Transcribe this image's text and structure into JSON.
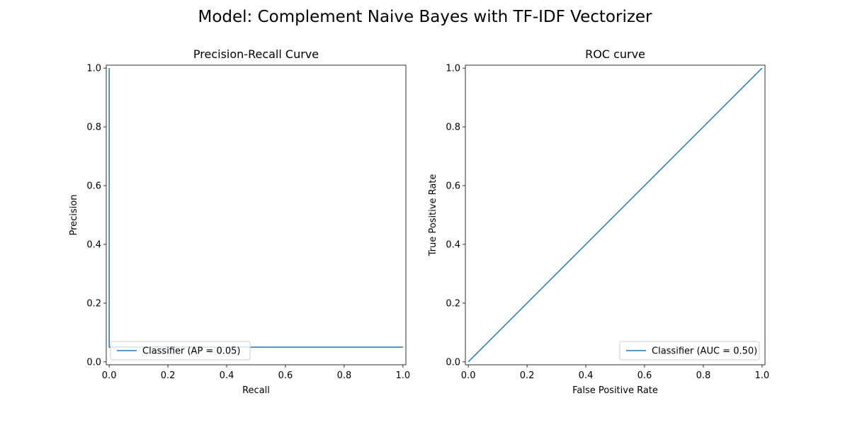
{
  "figure_title": "Model: Complement Naive Bayes with TF-IDF Vectorizer",
  "chart_data": [
    {
      "type": "line",
      "title": "Precision-Recall Curve",
      "xlabel": "Recall",
      "ylabel": "Precision",
      "xlim": [
        -0.01,
        1.01
      ],
      "ylim": [
        -0.01,
        1.01
      ],
      "xticks": [
        "0.0",
        "0.2",
        "0.4",
        "0.6",
        "0.8",
        "1.0"
      ],
      "yticks": [
        "0.0",
        "0.2",
        "0.4",
        "0.6",
        "0.8",
        "1.0"
      ],
      "grid": false,
      "legend_position": "lower-left",
      "series": [
        {
          "name": "Classifier (AP = 0.05)",
          "color": "#1f77b4",
          "x": [
            0.0,
            0.0,
            0.003,
            0.003,
            1.0
          ],
          "y": [
            1.0,
            0.05,
            0.05,
            0.05,
            0.05
          ]
        }
      ]
    },
    {
      "type": "line",
      "title": "ROC curve",
      "xlabel": "False Positive Rate",
      "ylabel": "True Positive Rate",
      "xlim": [
        -0.01,
        1.01
      ],
      "ylim": [
        -0.01,
        1.01
      ],
      "xticks": [
        "0.0",
        "0.2",
        "0.4",
        "0.6",
        "0.8",
        "1.0"
      ],
      "yticks": [
        "0.0",
        "0.2",
        "0.4",
        "0.6",
        "0.8",
        "1.0"
      ],
      "grid": false,
      "legend_position": "lower-right",
      "series": [
        {
          "name": "Classifier (AUC = 0.50)",
          "color": "#1f77b4",
          "x": [
            0.0,
            1.0
          ],
          "y": [
            0.0,
            1.0
          ]
        }
      ]
    }
  ]
}
